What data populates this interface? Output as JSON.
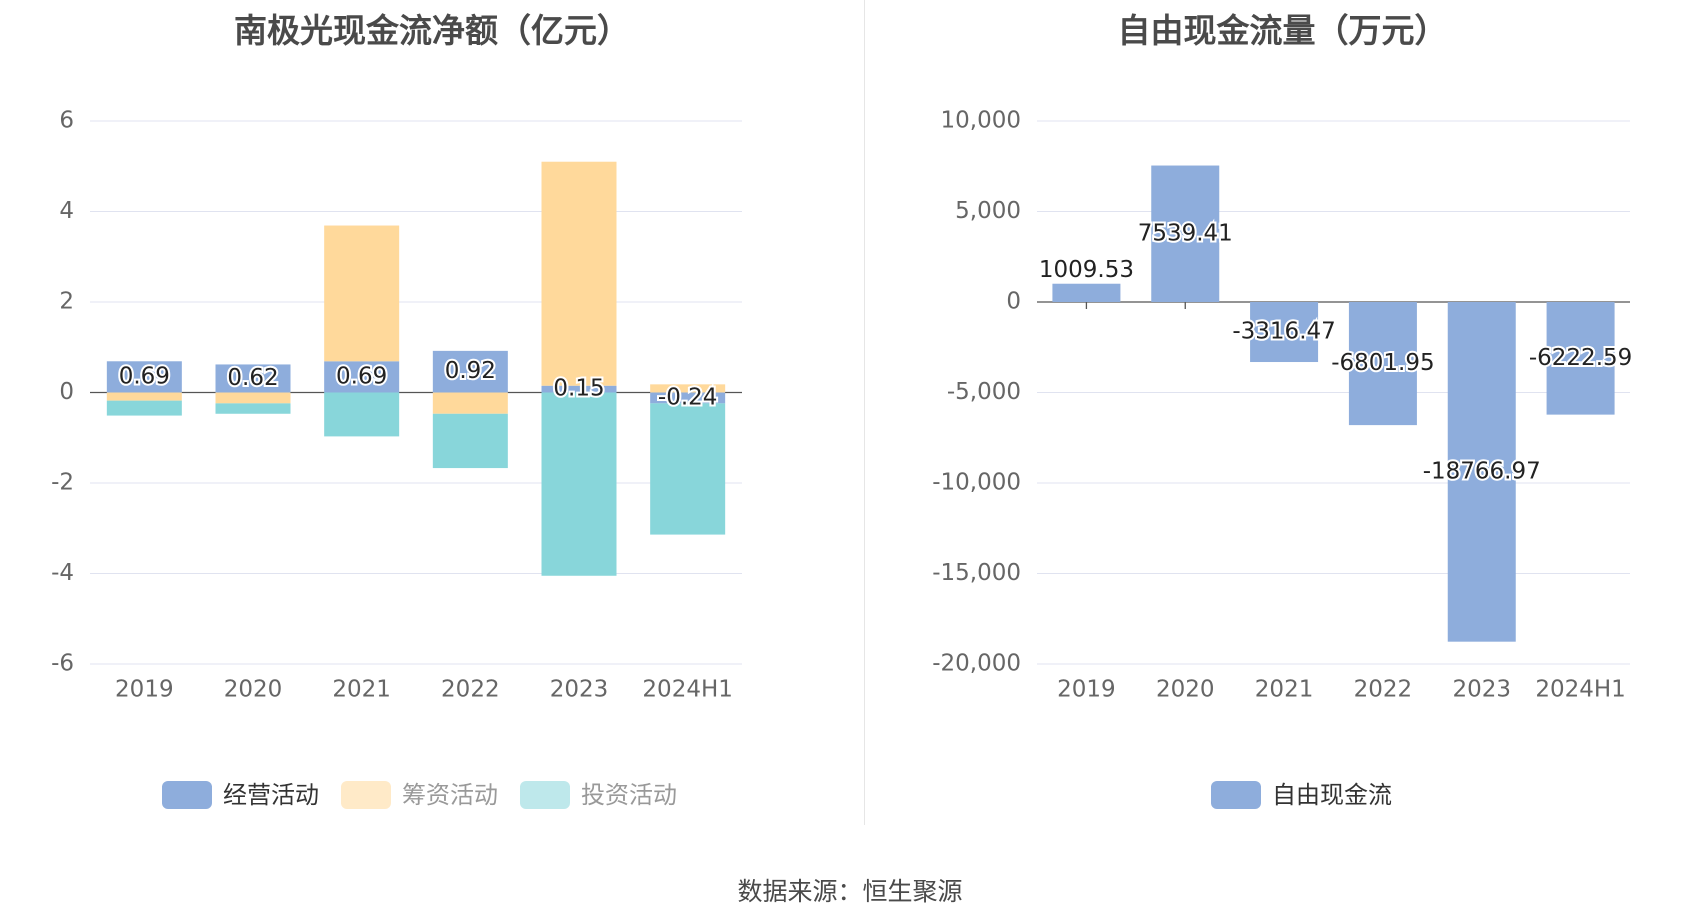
{
  "source_text": "数据来源：恒生聚源",
  "chart_data": [
    {
      "type": "bar",
      "stacked": true,
      "title": "南极光现金流净额（亿元）",
      "categories": [
        "2019",
        "2020",
        "2021",
        "2022",
        "2023",
        "2024H1"
      ],
      "ylim": [
        -6,
        6
      ],
      "yticks": [
        6,
        4,
        2,
        0,
        -2,
        -4,
        -6
      ],
      "grid": true,
      "legend_position": "bottom",
      "series": [
        {
          "name": "经营活动",
          "color": "#8eaddc",
          "values": [
            0.69,
            0.62,
            0.69,
            0.92,
            0.15,
            -0.24
          ]
        },
        {
          "name": "筹资活动",
          "color": "#ffd99b",
          "values": [
            -0.18,
            -0.24,
            3.0,
            -0.47,
            4.95,
            0.18
          ]
        },
        {
          "name": "投资活动",
          "color": "#88d6da",
          "values": [
            -0.33,
            -0.23,
            -0.97,
            -1.2,
            -4.05,
            -2.9
          ]
        }
      ],
      "data_labels": [
        "0.69",
        "0.62",
        "0.69",
        "0.92",
        "0.15",
        "-0.24"
      ]
    },
    {
      "type": "bar",
      "title": "自由现金流量（万元）",
      "categories": [
        "2019",
        "2020",
        "2021",
        "2022",
        "2023",
        "2024H1"
      ],
      "ylim": [
        -20000,
        10000
      ],
      "yticks": [
        "10,000",
        "5,000",
        "0",
        "-5,000",
        "-10,000",
        "-15,000",
        "-20,000"
      ],
      "grid": true,
      "legend_position": "bottom",
      "series": [
        {
          "name": "自由现金流",
          "color": "#8eaddc",
          "values": [
            1009.53,
            7539.41,
            -3316.47,
            -6801.95,
            -18766.97,
            -6222.59
          ]
        }
      ],
      "data_labels": [
        "1009.53",
        "7539.41",
        "-3316.47",
        "-6801.95",
        "-18766.97",
        "-6222.59"
      ]
    }
  ]
}
